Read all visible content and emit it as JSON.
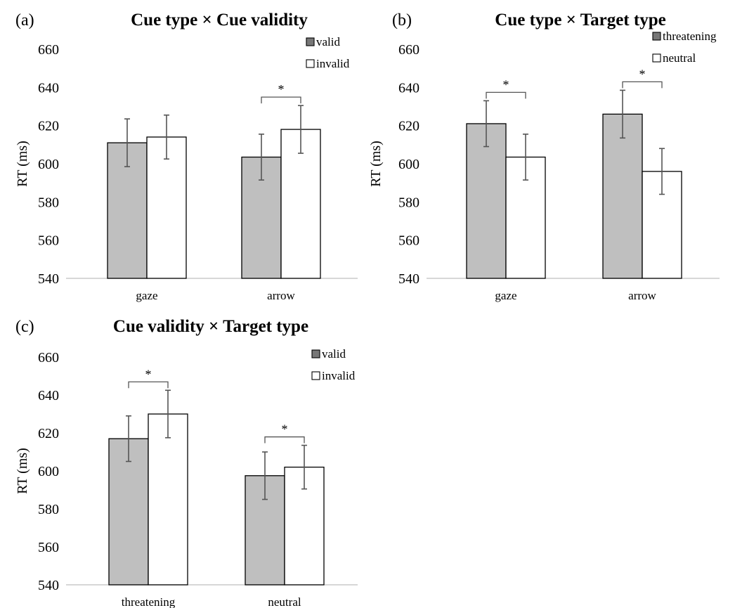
{
  "chart_data": [
    {
      "type": "bar",
      "panel_label": "(a)",
      "title": "Cue type × Cue validity",
      "ylabel": "RT (ms)",
      "xlabel": "",
      "ylim": [
        540,
        660
      ],
      "yticks": [
        540,
        560,
        580,
        600,
        620,
        640,
        660
      ],
      "categories": [
        "gaze",
        "arrow"
      ],
      "series": [
        {
          "name": "valid",
          "color": "#bfbfbf",
          "values": [
            611,
            603.5
          ],
          "errors": [
            12.5,
            12
          ]
        },
        {
          "name": "invalid",
          "color": "#ffffff",
          "values": [
            614,
            618
          ],
          "errors": [
            11.5,
            12.5
          ]
        }
      ],
      "significance": [
        {
          "category": "arrow",
          "label": "*"
        }
      ],
      "legend": "top-right",
      "grid": false
    },
    {
      "type": "bar",
      "panel_label": "(b)",
      "title": "Cue type × Target type",
      "ylabel": "RT (ms)",
      "xlabel": "",
      "ylim": [
        540,
        660
      ],
      "yticks": [
        540,
        560,
        580,
        600,
        620,
        640,
        660
      ],
      "categories": [
        "gaze",
        "arrow"
      ],
      "series": [
        {
          "name": "threatening",
          "color": "#bfbfbf",
          "values": [
            621,
            626
          ],
          "errors": [
            12,
            12.5
          ]
        },
        {
          "name": "neutral",
          "color": "#ffffff",
          "values": [
            603.5,
            596
          ],
          "errors": [
            12,
            12
          ]
        }
      ],
      "significance": [
        {
          "category": "gaze",
          "label": "*"
        },
        {
          "category": "arrow",
          "label": "*"
        }
      ],
      "legend": "top-right",
      "grid": false
    },
    {
      "type": "bar",
      "panel_label": "(c)",
      "title": "Cue validity × Target type",
      "ylabel": "RT (ms)",
      "xlabel": "",
      "ylim": [
        540,
        660
      ],
      "yticks": [
        540,
        560,
        580,
        600,
        620,
        640,
        660
      ],
      "categories": [
        "threatening",
        "neutral"
      ],
      "series": [
        {
          "name": "valid",
          "color": "#bfbfbf",
          "values": [
            617,
            597.5
          ],
          "errors": [
            12,
            12.5
          ]
        },
        {
          "name": "invalid",
          "color": "#ffffff",
          "values": [
            630,
            602
          ],
          "errors": [
            12.5,
            11.5
          ]
        }
      ],
      "significance": [
        {
          "category": "threatening",
          "label": "*"
        },
        {
          "category": "neutral",
          "label": "*"
        }
      ],
      "legend": "top-right",
      "grid": false
    }
  ]
}
